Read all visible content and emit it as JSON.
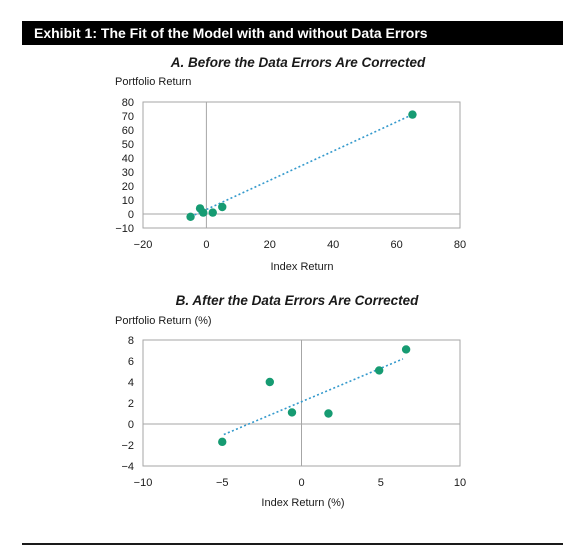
{
  "exhibit_title": "Exhibit 1: The Fit of the Model with and without Data Errors",
  "colors": {
    "marker": "#169b72",
    "trendline": "#3399cc",
    "header_bg": "#000000",
    "frame": "#a6a6a6"
  },
  "chart_data": [
    {
      "type": "scatter",
      "title": "A. Before the Data Errors Are Corrected",
      "ylabel": "Portfolio Return",
      "xlabel": "Index Return",
      "xlim": [
        -20,
        80
      ],
      "ylim": [
        -10,
        80
      ],
      "xticks": [
        "−20",
        "0",
        "20",
        "40",
        "60",
        "80"
      ],
      "yticks": [
        "80",
        "70",
        "60",
        "50",
        "40",
        "30",
        "20",
        "10",
        "0",
        "−10"
      ],
      "grid": false,
      "points": [
        {
          "x": -5,
          "y": -2
        },
        {
          "x": -2,
          "y": 4
        },
        {
          "x": -1,
          "y": 1
        },
        {
          "x": 2,
          "y": 1
        },
        {
          "x": 5,
          "y": 5
        },
        {
          "x": 65,
          "y": 71
        }
      ],
      "trendline": {
        "x": [
          -5,
          65
        ],
        "y": [
          -2,
          71
        ]
      }
    },
    {
      "type": "scatter",
      "title": "B. After the Data Errors Are Corrected",
      "ylabel": "Portfolio Return (%)",
      "xlabel": "Index Return (%)",
      "xlim": [
        -10,
        10
      ],
      "ylim": [
        -4,
        8
      ],
      "xticks": [
        "−10",
        "−5",
        "0",
        "5",
        "10"
      ],
      "yticks": [
        "8",
        "6",
        "4",
        "2",
        "0",
        "−2",
        "−4"
      ],
      "grid": false,
      "points": [
        {
          "x": -5,
          "y": -1.7
        },
        {
          "x": -2,
          "y": 4
        },
        {
          "x": -0.6,
          "y": 1.1
        },
        {
          "x": 1.7,
          "y": 1
        },
        {
          "x": 4.9,
          "y": 5.1
        },
        {
          "x": 6.6,
          "y": 7.1
        }
      ],
      "trendline": {
        "x": [
          -4.9,
          6.4
        ],
        "y": [
          -1,
          6.2
        ]
      }
    }
  ]
}
